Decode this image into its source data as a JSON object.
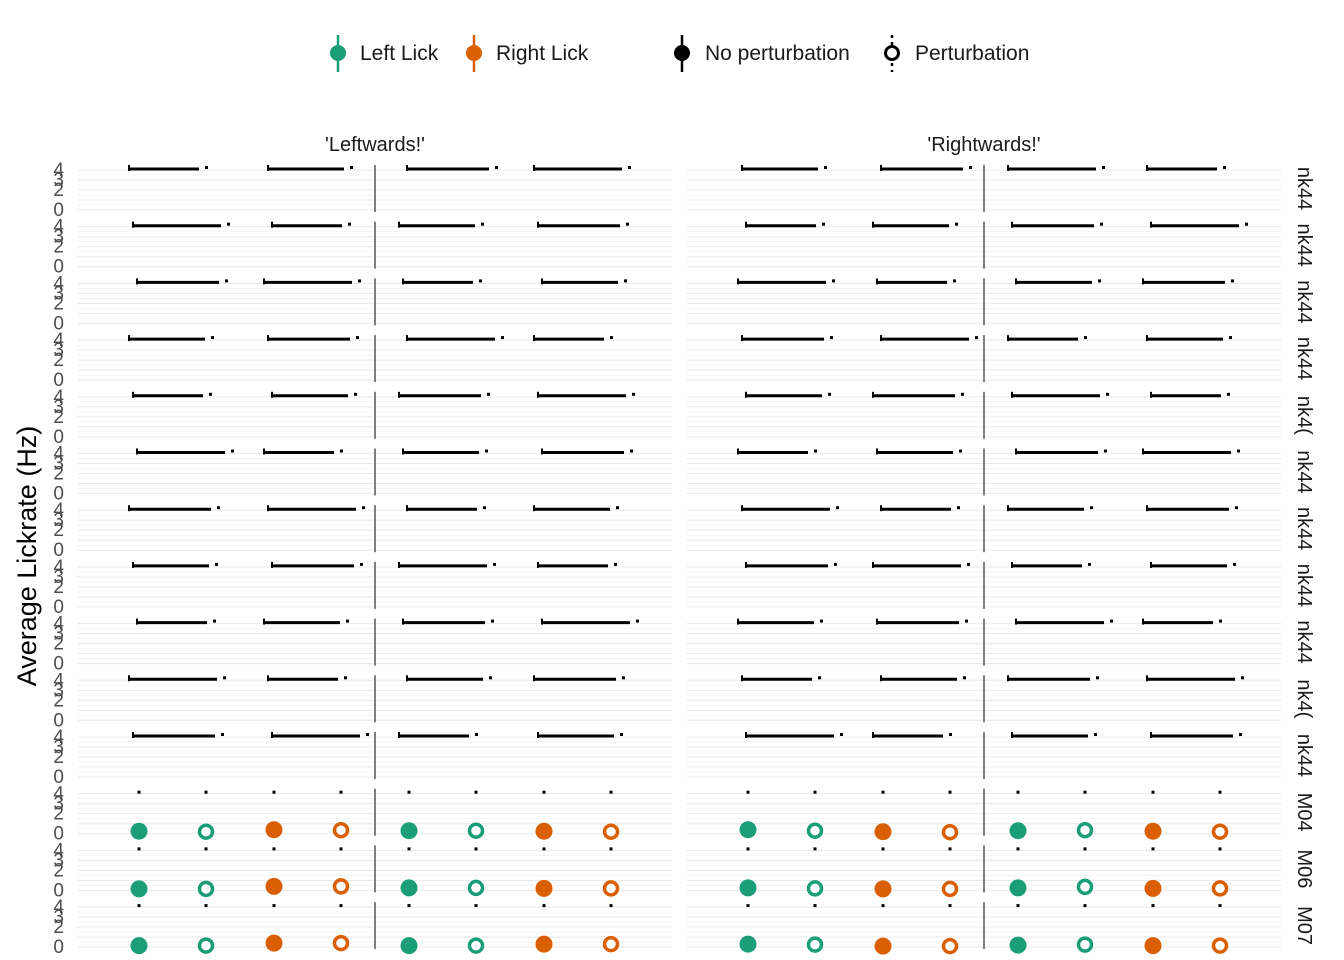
{
  "chart_data": {
    "type": "scatter",
    "title": "",
    "ylabel": "Average Lickrate (Hz)",
    "xlabel": "",
    "ylim": [
      0,
      4.3
    ],
    "yticks": [
      "0",
      "1",
      "2",
      "3",
      "4"
    ],
    "grid": true,
    "legend_position": "top",
    "legend": {
      "color": [
        {
          "label": "Left Lick",
          "color": "#1b9e77"
        },
        {
          "label": "Right Lick",
          "color": "#d95f02"
        }
      ],
      "shape": [
        {
          "label": "No perturbation",
          "style": "filled"
        },
        {
          "label": "Perturbation",
          "style": "open-dotted"
        }
      ]
    },
    "columns": [
      {
        "label": "'Leftwards!'"
      },
      {
        "label": "'Rightwards!'"
      }
    ],
    "rows": [
      "nk44",
      "nk44",
      "nk44",
      "nk44",
      "nk4(",
      "nk44",
      "nk44",
      "nk44",
      "nk44",
      "nk4(",
      "nk44",
      "M04",
      "M06",
      "M07"
    ],
    "dense_rows": 11,
    "points_per_panel": [
      {
        "lick": "Left Lick",
        "perturbation": "No perturbation"
      },
      {
        "lick": "Left Lick",
        "perturbation": "Perturbation"
      },
      {
        "lick": "Right Lick",
        "perturbation": "No perturbation"
      },
      {
        "lick": "Right Lick",
        "perturbation": "Perturbation"
      },
      {
        "lick": "Left Lick",
        "perturbation": "No perturbation"
      },
      {
        "lick": "Left Lick",
        "perturbation": "Perturbation"
      },
      {
        "lick": "Right Lick",
        "perturbation": "No perturbation"
      },
      {
        "lick": "Right Lick",
        "perturbation": "Perturbation"
      }
    ],
    "series": [
      {
        "subject": "M04",
        "panel": "'Leftwards!'",
        "values": [
          0.25,
          0.2,
          0.4,
          0.35,
          0.3,
          0.3,
          0.25,
          0.2
        ]
      },
      {
        "subject": "M04",
        "panel": "'Rightwards!'",
        "values": [
          0.4,
          0.3,
          0.2,
          0.15,
          0.3,
          0.35,
          0.25,
          0.2
        ]
      },
      {
        "subject": "M06",
        "panel": "'Leftwards!'",
        "values": [
          0.15,
          0.15,
          0.4,
          0.4,
          0.25,
          0.25,
          0.2,
          0.2
        ]
      },
      {
        "subject": "M06",
        "panel": "'Rightwards!'",
        "values": [
          0.25,
          0.2,
          0.15,
          0.15,
          0.25,
          0.35,
          0.2,
          0.2
        ]
      },
      {
        "subject": "M07",
        "panel": "'Leftwards!'",
        "values": [
          0.15,
          0.15,
          0.4,
          0.4,
          0.15,
          0.15,
          0.3,
          0.3
        ]
      },
      {
        "subject": "M07",
        "panel": "'Rightwards!'",
        "values": [
          0.3,
          0.25,
          0.1,
          0.1,
          0.2,
          0.25,
          0.15,
          0.15
        ]
      }
    ]
  }
}
